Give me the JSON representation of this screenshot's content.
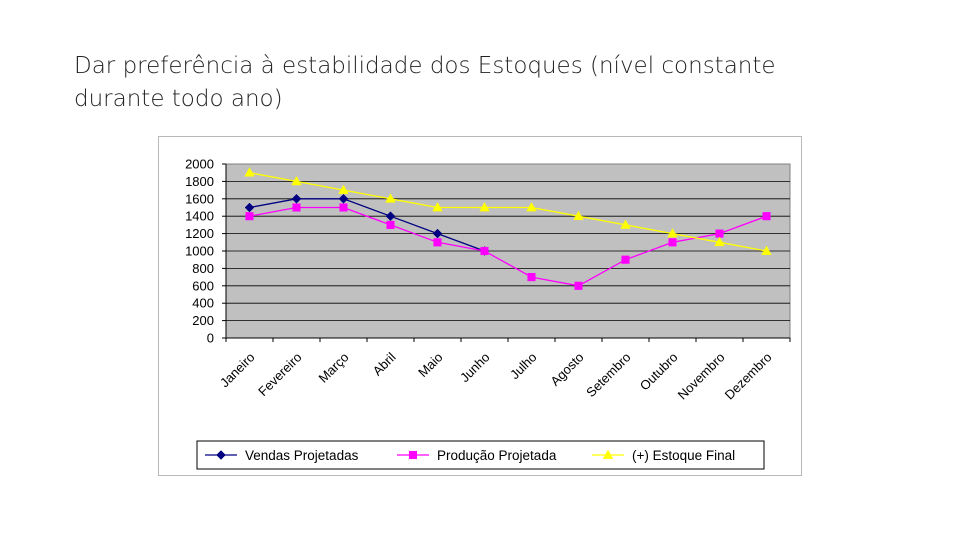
{
  "slide": {
    "title": "Dar preferência à estabilidade dos Estoques (nível constante durante todo ano)"
  },
  "chart_data": {
    "type": "line",
    "title": "",
    "xlabel": "",
    "ylabel": "",
    "ylim": [
      0,
      2000
    ],
    "ytick_step": 200,
    "grid": true,
    "legend_position": "bottom",
    "categories": [
      "Janeiro",
      "Fevereiro",
      "Março",
      "Abril",
      "Maio",
      "Junho",
      "Julho",
      "Agosto",
      "Setembro",
      "Outubro",
      "Novembro",
      "Dezembro"
    ],
    "series": [
      {
        "name": "Vendas Projetadas",
        "color": "#000080",
        "marker": "diamond",
        "values": [
          1500,
          1600,
          1600,
          1400,
          1200,
          1000,
          null,
          null,
          null,
          null,
          null,
          null
        ]
      },
      {
        "name": "Produção Projetada",
        "color": "#ff00ff",
        "marker": "square",
        "values": [
          1400,
          1500,
          1500,
          1300,
          1100,
          1000,
          700,
          600,
          900,
          1100,
          1200,
          1400
        ]
      },
      {
        "name": "(+) Estoque Final",
        "color": "#ffff00",
        "marker": "triangle",
        "values": [
          1900,
          1800,
          1700,
          1600,
          1500,
          1500,
          1500,
          1400,
          1300,
          1200,
          1100,
          1000
        ]
      }
    ]
  }
}
